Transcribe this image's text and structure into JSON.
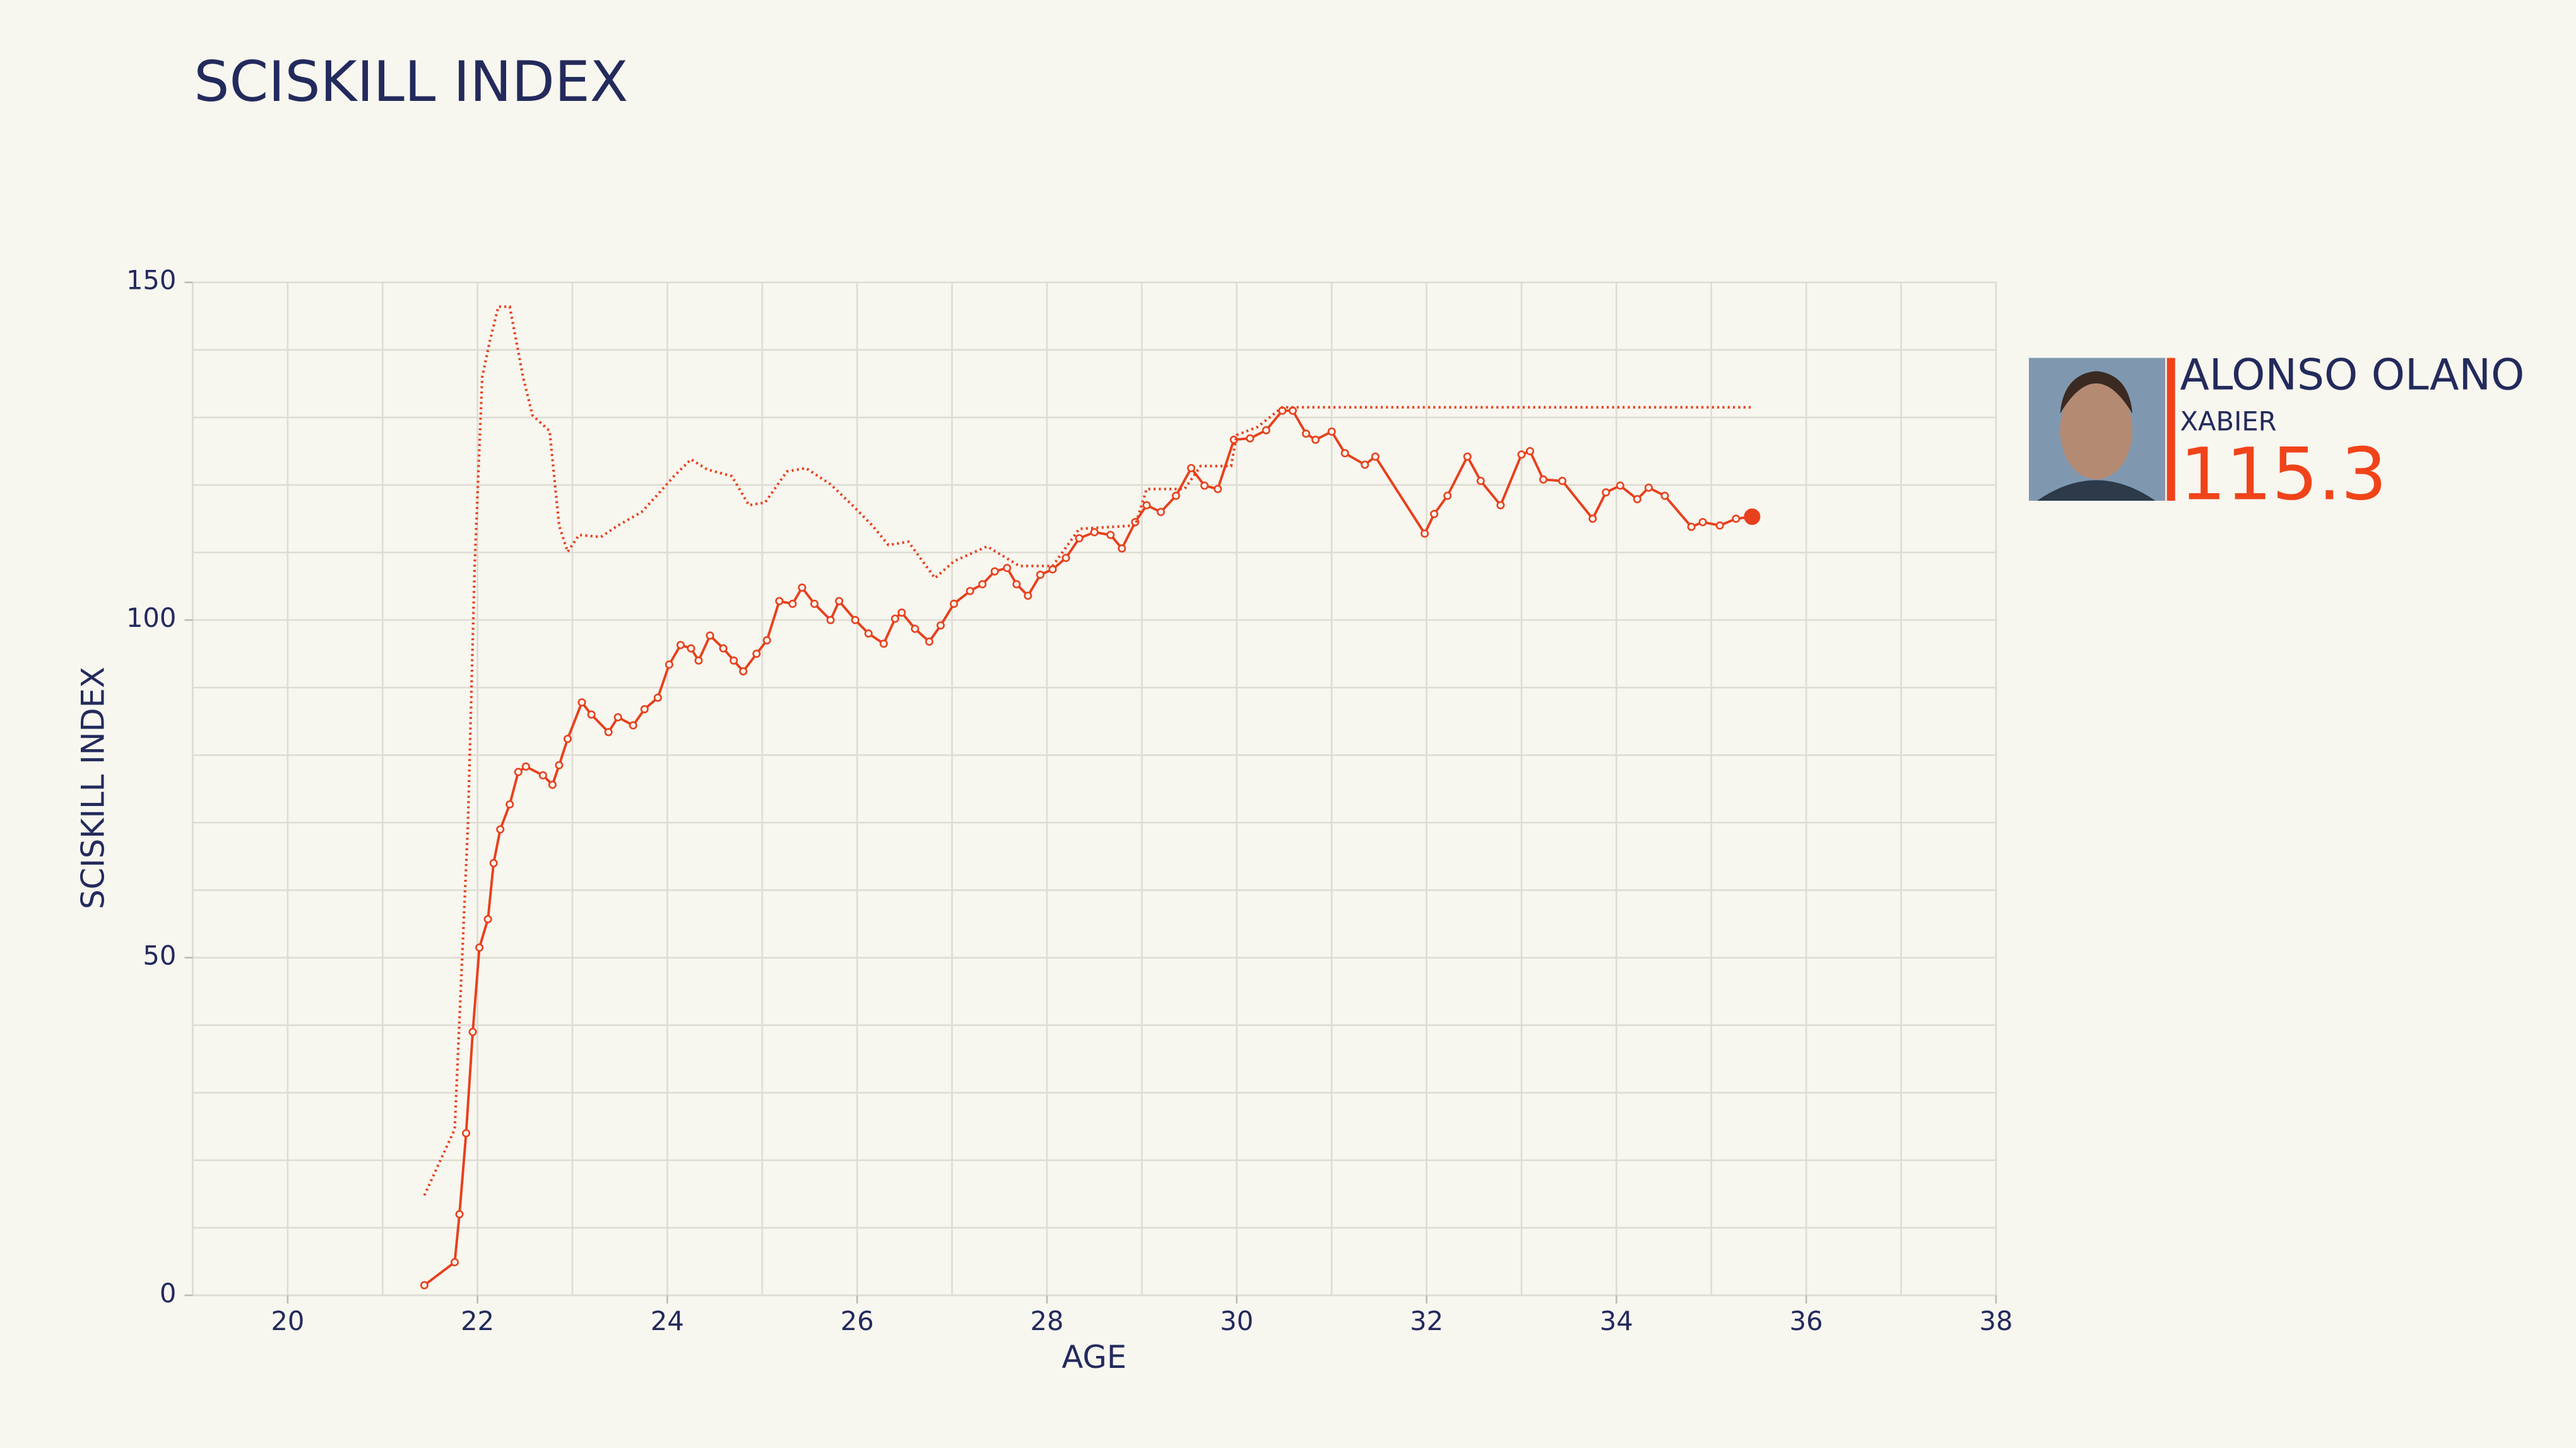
{
  "chart_data": {
    "type": "line",
    "title": "SCISKILL INDEX",
    "xlabel": "AGE",
    "ylabel": "SCISKILL INDEX",
    "xlim": [
      19,
      38
    ],
    "xticks": [
      20,
      22,
      24,
      26,
      28,
      30,
      32,
      34,
      36,
      38
    ],
    "ylim": [
      0,
      150
    ],
    "yticks": [
      0,
      50,
      100,
      150
    ],
    "xgrid": [
      19,
      20,
      21,
      22,
      23,
      24,
      25,
      26,
      27,
      28,
      29,
      30,
      31,
      32,
      33,
      34,
      35,
      36,
      37,
      38
    ],
    "ygrid": [
      0,
      10,
      20,
      30,
      40,
      50,
      60,
      70,
      80,
      90,
      100,
      110,
      120,
      130,
      140,
      150
    ],
    "grid": true,
    "series": [
      {
        "color": "#e8401c",
        "style": "solid",
        "markers": true,
        "x": [
          21.44,
          21.76,
          21.81,
          21.88,
          21.95,
          22.02,
          22.11,
          22.17,
          22.24,
          22.34,
          22.43,
          22.51,
          22.69,
          22.79,
          22.86,
          22.95,
          23.1,
          23.2,
          23.38,
          23.48,
          23.64,
          23.76,
          23.9,
          24.02,
          24.14,
          24.25,
          24.33,
          24.45,
          24.59,
          24.7,
          24.8,
          24.94,
          25.05,
          25.18,
          25.32,
          25.42,
          25.55,
          25.72,
          25.81,
          25.98,
          26.12,
          26.28,
          26.4,
          26.47,
          26.61,
          26.76,
          26.88,
          27.02,
          27.19,
          27.32,
          27.45,
          27.58,
          27.68,
          27.8,
          27.93,
          28.06,
          28.2,
          28.34,
          28.5,
          28.67,
          28.79,
          28.93,
          29.05,
          29.2,
          29.36,
          29.52,
          29.66,
          29.8,
          29.97,
          30.14,
          30.31,
          30.48,
          30.59,
          30.73,
          30.83,
          31.0,
          31.14,
          31.35,
          31.46,
          31.98,
          32.08,
          32.22,
          32.43,
          32.57,
          32.78,
          33.0,
          33.09,
          33.23,
          33.43,
          33.75,
          33.89,
          34.04,
          34.22,
          34.34,
          34.51,
          34.79,
          34.91,
          35.09,
          35.26,
          35.43
        ],
        "values": [
          1.5,
          4.9,
          12,
          24,
          39,
          51.5,
          55.7,
          64,
          69,
          72.7,
          77.5,
          78.3,
          77,
          75.6,
          78.5,
          82.4,
          87.8,
          86,
          83.4,
          85.6,
          84.4,
          86.8,
          88.5,
          93.4,
          96.3,
          95.8,
          94,
          97.7,
          95.8,
          94,
          92.4,
          95,
          97,
          102.8,
          102.4,
          104.8,
          102.4,
          100,
          102.8,
          100,
          98,
          96.5,
          100.2,
          101.1,
          98.7,
          96.8,
          99.2,
          102.4,
          104.3,
          105.3,
          107.2,
          107.7,
          105.3,
          103.6,
          106.7,
          107.5,
          109.2,
          112.1,
          113,
          112.6,
          110.6,
          114.5,
          117,
          116,
          118.4,
          122.5,
          119.9,
          119.4,
          126.7,
          126.9,
          128.1,
          131,
          131,
          127.6,
          126.7,
          127.9,
          124.7,
          123,
          124.2,
          112.8,
          115.7,
          118.4,
          124.2,
          120.6,
          117,
          124.5,
          125,
          120.8,
          120.6,
          115,
          118.9,
          119.9,
          117.9,
          119.6,
          118.4,
          113.8,
          114.5,
          114,
          115,
          115.3
        ]
      },
      {
        "color": "#e8401c",
        "style": "dotted",
        "markers": false,
        "x": [
          21.44,
          21.76,
          21.9,
          21.97,
          22.05,
          22.13,
          22.22,
          22.34,
          22.48,
          22.58,
          22.76,
          22.86,
          22.95,
          23.07,
          23.3,
          23.48,
          23.73,
          23.9,
          24.07,
          24.25,
          24.42,
          24.68,
          24.86,
          25.03,
          25.26,
          25.46,
          25.72,
          25.95,
          26.16,
          26.33,
          26.54,
          26.82,
          27.02,
          27.37,
          27.71,
          28.06,
          28.34,
          28.93,
          29.05,
          29.45,
          29.62,
          29.94,
          30.0,
          30.22,
          30.48,
          35.43
        ],
        "values": [
          14.8,
          24.6,
          70,
          108,
          136,
          141.3,
          146.4,
          146.4,
          136,
          130.3,
          128,
          114,
          110.1,
          112.6,
          112.3,
          114,
          116,
          118.6,
          121.3,
          123.8,
          122.3,
          121.3,
          117,
          117.4,
          122,
          122.5,
          120.1,
          117,
          114,
          111.1,
          111.6,
          106.2,
          108.7,
          110.9,
          108,
          108,
          113.5,
          114,
          119.4,
          119.4,
          122.8,
          122.8,
          127.4,
          128.6,
          131.5,
          131.5
        ]
      }
    ]
  },
  "player": {
    "last_name": "ALONSO OLANO",
    "first_name": "XABIER",
    "value": 115.3,
    "value_color": "#f0431a"
  }
}
